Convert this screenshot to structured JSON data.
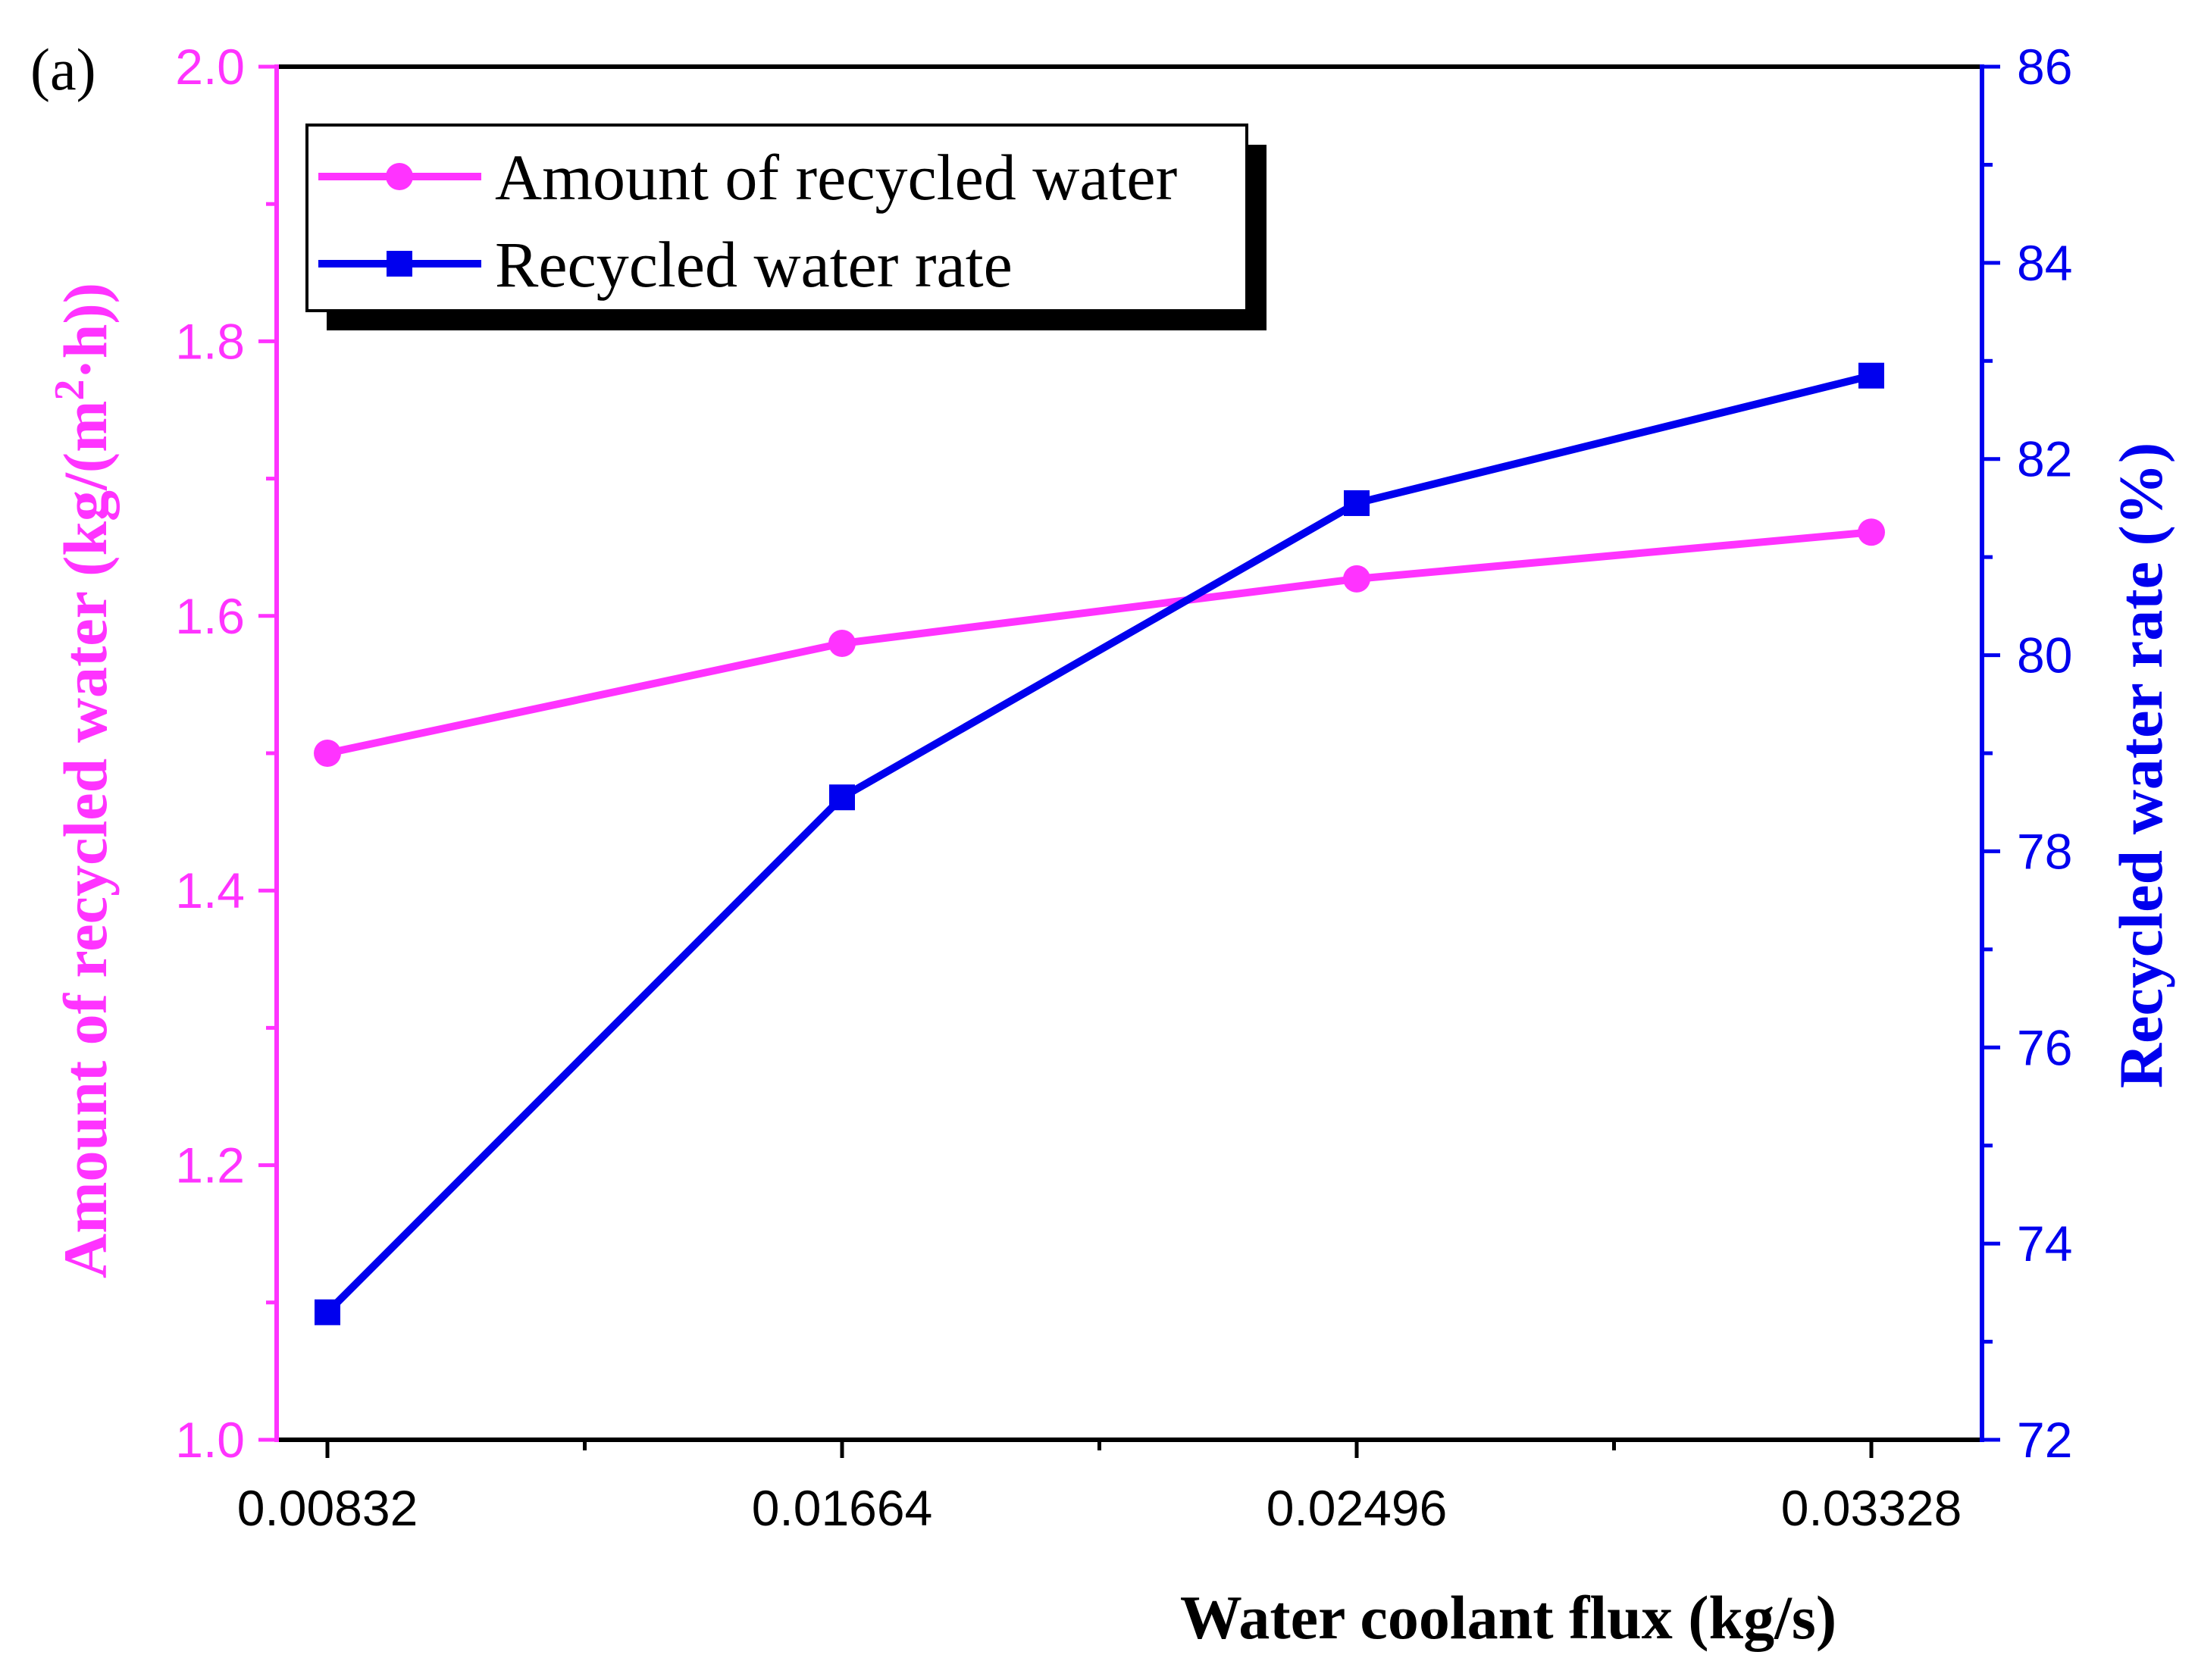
{
  "chart_data": {
    "type": "line",
    "panel_label": "(a)",
    "categories": [
      "0.00832",
      "0.01664",
      "0.02496",
      "0.03328"
    ],
    "xlabel": "Water coolant flux (kg/s)",
    "ylabel_left": {
      "main": "Amount of recycled water (kg/(m",
      "superscript": "2",
      "tail": "·h))"
    },
    "ylabel_right": "Recycled water rate (%)",
    "ylim_left": [
      1.0,
      2.0
    ],
    "yticks_left": [
      "1.0",
      "1.2",
      "1.4",
      "1.6",
      "1.8",
      "2.0"
    ],
    "ylim_right": [
      72,
      86
    ],
    "yticks_right": [
      "72",
      "74",
      "76",
      "78",
      "80",
      "82",
      "84",
      "86"
    ],
    "grid": false,
    "legend_position": "top-left",
    "series": [
      {
        "name": "Amount of recycled water",
        "axis": "left",
        "marker": "circle",
        "color": "#ff33ff",
        "values": [
          1.5,
          1.58,
          1.627,
          1.661
        ]
      },
      {
        "name": "Recycled water rate",
        "axis": "right",
        "marker": "square",
        "color": "#0000ee",
        "values": [
          73.3,
          78.55,
          81.55,
          82.85
        ]
      }
    ],
    "colors": {
      "left_axis": "#ff33ff",
      "right_axis": "#0000ee",
      "bottom_axis": "#000000"
    }
  }
}
